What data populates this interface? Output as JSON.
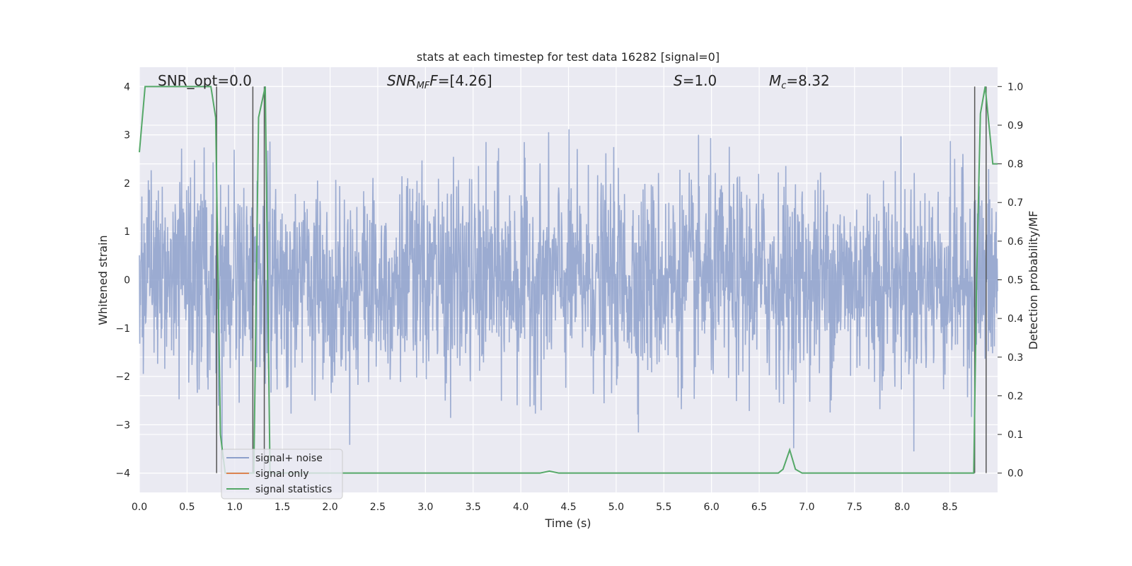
{
  "chart_data": {
    "type": "line",
    "title": "stats at each timestep for test data 16282 [signal=0]",
    "xlabel": "Time (s)",
    "ylabel_left": "Whitened strain",
    "ylabel_right": "Detection probability/MF",
    "xlim": [
      0.0,
      9.0
    ],
    "ylim_left": [
      -4.4,
      4.4
    ],
    "ylim_right": [
      -0.05,
      1.05
    ],
    "grid": true,
    "legend_position": "lower-left",
    "x_ticks": [
      "0.0",
      "0.5",
      "1.0",
      "1.5",
      "2.0",
      "2.5",
      "3.0",
      "3.5",
      "4.0",
      "4.5",
      "5.0",
      "5.5",
      "6.0",
      "6.5",
      "7.0",
      "7.5",
      "8.0",
      "8.5"
    ],
    "y_left_ticks": [
      "−4",
      "−3",
      "−2",
      "−1",
      "0",
      "1",
      "2",
      "3",
      "4"
    ],
    "y_right_ticks": [
      "0.0",
      "0.1",
      "0.2",
      "0.3",
      "0.4",
      "0.5",
      "0.6",
      "0.7",
      "0.8",
      "0.9",
      "1.0"
    ],
    "annotations": {
      "snr_opt": "SNR_opt=0.0",
      "snr_mf_prefix": "SNR",
      "snr_mf_sub": "MF",
      "snr_mf_value": "=[4.26]",
      "s_symbol": "S",
      "s_value": "=1.0",
      "mc_symbol": "M",
      "mc_sub": "c",
      "mc_value": "=8.32"
    },
    "series": [
      {
        "name": "signal+ noise",
        "color": "#8da0cb",
        "description_note": "whitened strain noise, amplitude roughly within -3.8 to 4.0",
        "envelope_typical": 2.0
      },
      {
        "name": "signal only",
        "color": "#dd8452",
        "values": []
      },
      {
        "name": "signal statistics",
        "color": "#55a868",
        "x": [
          0.0,
          0.06,
          0.1,
          0.2,
          0.5,
          0.75,
          0.8,
          0.85,
          0.9,
          1.15,
          1.19,
          1.2,
          1.25,
          1.32,
          1.37,
          1.5,
          2.0,
          3.0,
          4.0,
          4.2,
          4.3,
          4.4,
          5.0,
          6.0,
          6.7,
          6.75,
          6.82,
          6.88,
          6.95,
          7.5,
          8.0,
          8.5,
          8.75,
          8.78,
          8.82,
          8.87,
          8.95,
          9.0
        ],
        "y": [
          0.83,
          1.0,
          1.0,
          1.0,
          1.0,
          1.0,
          0.92,
          0.1,
          0.0,
          0.0,
          0.0,
          0.0,
          0.92,
          1.0,
          0.0,
          0.0,
          0.0,
          0.0,
          0.0,
          0.0,
          0.005,
          0.0,
          0.0,
          0.0,
          0.0,
          0.01,
          0.06,
          0.01,
          0.0,
          0.0,
          0.0,
          0.0,
          0.0,
          0.5,
          0.93,
          1.0,
          0.8,
          0.8
        ]
      }
    ],
    "vertical_lines_x": [
      0.81,
      1.19,
      1.31,
      8.76,
      8.88
    ],
    "legend_title": ""
  }
}
